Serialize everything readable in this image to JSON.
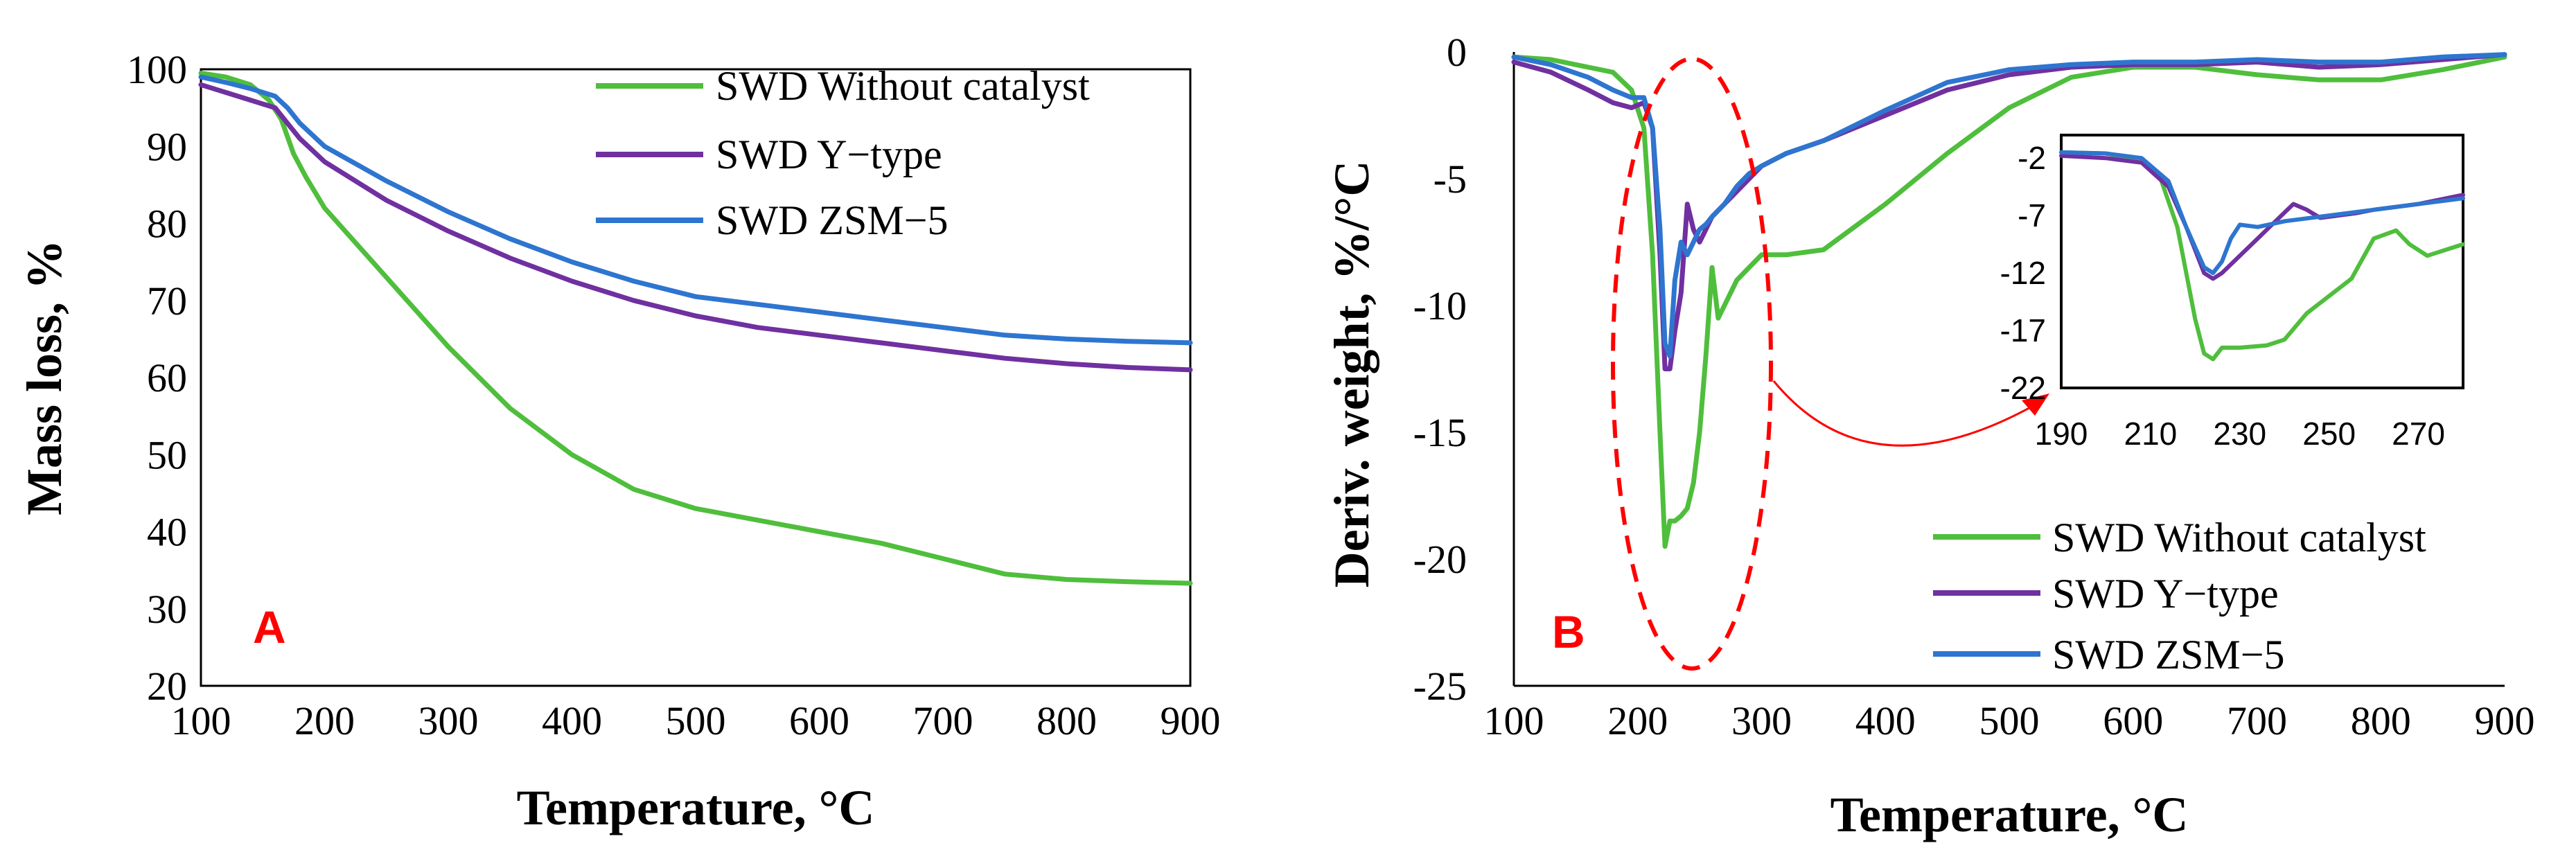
{
  "chart_data": [
    {
      "type": "line",
      "panel_label": "A",
      "title": "",
      "xlabel": "Temperature, °C",
      "ylabel": "Mass loss, %",
      "xlim": [
        100,
        900
      ],
      "ylim": [
        20,
        100
      ],
      "xticks": [
        "100",
        "200",
        "300",
        "400",
        "500",
        "600",
        "700",
        "800",
        "900"
      ],
      "yticks": [
        "20",
        "30",
        "40",
        "50",
        "60",
        "70",
        "80",
        "90",
        "100"
      ],
      "grid": false,
      "legend_position": "top-right",
      "series": [
        {
          "name": "SWD Without catalyst",
          "color": "#4fbe3c",
          "x": [
            100,
            120,
            140,
            155,
            165,
            175,
            185,
            200,
            250,
            300,
            350,
            400,
            450,
            500,
            550,
            600,
            650,
            700,
            750,
            800,
            850,
            900
          ],
          "y": [
            99.5,
            99,
            98,
            96,
            93.5,
            89,
            86,
            82,
            73,
            64,
            56,
            50,
            45.5,
            43,
            41.5,
            40,
            38.5,
            36.5,
            34.5,
            33.8,
            33.5,
            33.3
          ]
        },
        {
          "name": "SWD Y−type",
          "color": "#7030a0",
          "x": [
            100,
            120,
            140,
            160,
            170,
            180,
            200,
            250,
            300,
            350,
            400,
            450,
            500,
            550,
            600,
            650,
            700,
            750,
            800,
            850,
            900
          ],
          "y": [
            98,
            97,
            96,
            95,
            93,
            91,
            88,
            83,
            79,
            75.5,
            72.5,
            70,
            68,
            66.5,
            65.5,
            64.5,
            63.5,
            62.5,
            61.8,
            61.3,
            61
          ]
        },
        {
          "name": "SWD ZSM−5",
          "color": "#2e75d0",
          "x": [
            100,
            120,
            140,
            160,
            170,
            180,
            200,
            250,
            300,
            350,
            400,
            450,
            500,
            550,
            600,
            650,
            700,
            750,
            800,
            850,
            900
          ],
          "y": [
            99,
            98.3,
            97.5,
            96.5,
            95,
            93,
            90,
            85.5,
            81.5,
            78,
            75,
            72.5,
            70.5,
            69.5,
            68.5,
            67.5,
            66.5,
            65.5,
            65,
            64.7,
            64.5
          ]
        }
      ]
    },
    {
      "type": "line",
      "panel_label": "B",
      "title": "",
      "xlabel": "Temperature, °C",
      "ylabel": "Deriv. weight, %/°C",
      "xlim": [
        100,
        900
      ],
      "ylim": [
        -25,
        0
      ],
      "xticks": [
        "100",
        "200",
        "300",
        "400",
        "500",
        "600",
        "700",
        "800",
        "900"
      ],
      "yticks": [
        "0",
        "-5",
        "-10",
        "-15",
        "-20",
        "-25"
      ],
      "grid": false,
      "legend_position": "bottom-right",
      "series": [
        {
          "name": "SWD Without catalyst",
          "color": "#4fbe3c",
          "x": [
            100,
            130,
            160,
            180,
            195,
            205,
            212,
            218,
            222,
            226,
            230,
            235,
            240,
            245,
            250,
            255,
            260,
            265,
            270,
            280,
            290,
            300,
            320,
            350,
            400,
            450,
            500,
            550,
            600,
            650,
            700,
            750,
            800,
            850,
            900
          ],
          "y": [
            -0.2,
            -0.3,
            -0.6,
            -0.8,
            -1.5,
            -3,
            -8,
            -15,
            -19.5,
            -18.5,
            -18.5,
            -18.3,
            -18,
            -17,
            -15,
            -12,
            -8.5,
            -10.5,
            -10,
            -9,
            -8.5,
            -8,
            -8,
            -7.8,
            -6,
            -4,
            -2.2,
            -1,
            -0.6,
            -0.6,
            -0.9,
            -1.1,
            -1.1,
            -0.7,
            -0.2
          ]
        },
        {
          "name": "SWD Y−type",
          "color": "#7030a0",
          "x": [
            100,
            130,
            160,
            180,
            195,
            205,
            212,
            218,
            222,
            226,
            230,
            235,
            240,
            245,
            250,
            255,
            260,
            270,
            280,
            290,
            300,
            320,
            350,
            400,
            450,
            500,
            550,
            600,
            650,
            700,
            750,
            800,
            850,
            900
          ],
          "y": [
            -0.4,
            -0.8,
            -1.5,
            -2,
            -2.2,
            -2,
            -3,
            -8,
            -12.5,
            -12.5,
            -11,
            -9.5,
            -6,
            -7,
            -7.5,
            -7,
            -6.5,
            -6,
            -5.5,
            -5,
            -4.5,
            -4,
            -3.5,
            -2.5,
            -1.5,
            -0.9,
            -0.6,
            -0.5,
            -0.5,
            -0.4,
            -0.6,
            -0.5,
            -0.3,
            -0.1
          ]
        },
        {
          "name": "SWD ZSM−5",
          "color": "#2e75d0",
          "x": [
            100,
            130,
            160,
            180,
            195,
            205,
            212,
            218,
            222,
            226,
            230,
            235,
            240,
            245,
            250,
            255,
            260,
            270,
            280,
            290,
            300,
            320,
            350,
            400,
            450,
            500,
            550,
            600,
            650,
            700,
            750,
            800,
            850,
            900
          ],
          "y": [
            -0.2,
            -0.5,
            -1,
            -1.5,
            -1.8,
            -1.8,
            -3,
            -7,
            -11.5,
            -12,
            -9,
            -7.5,
            -8,
            -7.5,
            -7,
            -6.8,
            -6.5,
            -6,
            -5.3,
            -4.8,
            -4.5,
            -4,
            -3.5,
            -2.3,
            -1.2,
            -0.7,
            -0.5,
            -0.4,
            -0.4,
            -0.3,
            -0.4,
            -0.4,
            -0.2,
            -0.1
          ]
        }
      ],
      "inset": {
        "xlim": [
          190,
          280
        ],
        "ylim": [
          -22,
          0
        ],
        "xticks": [
          "190",
          "210",
          "230",
          "250",
          "270"
        ],
        "yticks": [
          "-2",
          "-7",
          "-12",
          "-17",
          "-22"
        ],
        "series": [
          {
            "name": "SWD Without catalyst",
            "color": "#4fbe3c",
            "x": [
              190,
              200,
              208,
              212,
              216,
              220,
              222,
              224,
              226,
              230,
              236,
              240,
              245,
              250,
              255,
              260,
              265,
              268,
              272,
              276,
              280
            ],
            "y": [
              -1.5,
              -1.6,
              -2.2,
              -3.5,
              -8,
              -16,
              -19,
              -19.5,
              -18.5,
              -18.5,
              -18.3,
              -17.8,
              -15.5,
              -14,
              -12.5,
              -9,
              -8.3,
              -9.5,
              -10.5,
              -10,
              -9.5
            ]
          },
          {
            "name": "SWD Y−type",
            "color": "#7030a0",
            "x": [
              190,
              200,
              208,
              214,
              218,
              222,
              224,
              226,
              230,
              234,
              238,
              242,
              245,
              248,
              252,
              256,
              260,
              270,
              280
            ],
            "y": [
              -1.8,
              -2,
              -2.4,
              -4.5,
              -8,
              -12,
              -12.5,
              -12,
              -10.5,
              -9,
              -7.5,
              -6,
              -6.5,
              -7.2,
              -7,
              -6.8,
              -6.5,
              -6,
              -5.2
            ]
          },
          {
            "name": "SWD ZSM−5",
            "color": "#2e75d0",
            "x": [
              190,
              200,
              208,
              214,
              218,
              222,
              224,
              226,
              228,
              230,
              234,
              240,
              250,
              260,
              270,
              280
            ],
            "y": [
              -1.5,
              -1.6,
              -2,
              -4,
              -8,
              -11.5,
              -12,
              -11,
              -9,
              -7.8,
              -8,
              -7.5,
              -7,
              -6.5,
              -6,
              -5.5
            ]
          }
        ]
      }
    }
  ]
}
